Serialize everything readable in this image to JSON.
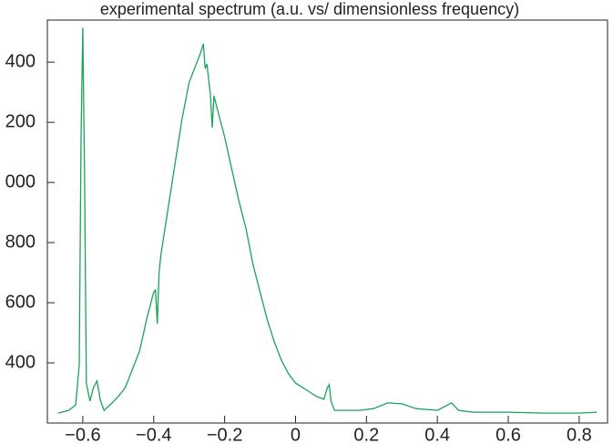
{
  "chart_data": {
    "type": "line",
    "title": "experimental spectrum (a.u. vs/ dimensionless frequency)",
    "x": [
      -0.67,
      -0.64,
      -0.62,
      -0.61,
      -0.605,
      -0.6,
      -0.595,
      -0.59,
      -0.58,
      -0.57,
      -0.56,
      -0.55,
      -0.54,
      -0.52,
      -0.5,
      -0.48,
      -0.46,
      -0.44,
      -0.42,
      -0.4,
      -0.395,
      -0.39,
      -0.385,
      -0.38,
      -0.36,
      -0.34,
      -0.32,
      -0.3,
      -0.28,
      -0.27,
      -0.26,
      -0.255,
      -0.25,
      -0.24,
      -0.235,
      -0.23,
      -0.22,
      -0.2,
      -0.18,
      -0.16,
      -0.14,
      -0.12,
      -0.1,
      -0.08,
      -0.06,
      -0.04,
      -0.02,
      0,
      0.02,
      0.04,
      0.06,
      0.08,
      0.09,
      0.095,
      0.1,
      0.11,
      0.14,
      0.18,
      0.22,
      0.26,
      0.3,
      0.34,
      0.4,
      0.44,
      0.46,
      0.5,
      0.6,
      0.7,
      0.8,
      0.85
    ],
    "series": [
      {
        "color": "#1aa35a",
        "values": [
          233,
          242,
          260,
          394,
          1151,
          1515,
          1000,
          333,
          273,
          318,
          340,
          273,
          242,
          264,
          288,
          318,
          379,
          439,
          545,
          636,
          642,
          530,
          697,
          758,
          909,
          1061,
          1212,
          1333,
          1394,
          1424,
          1461,
          1379,
          1394,
          1288,
          1182,
          1288,
          1242,
          1152,
          1045,
          939,
          848,
          727,
          636,
          545,
          470,
          409,
          364,
          333,
          318,
          303,
          288,
          279,
          318,
          327,
          273,
          242,
          242,
          242,
          248,
          267,
          264,
          248,
          242,
          267,
          242,
          236,
          236,
          233,
          233,
          236
        ]
      }
    ],
    "xlim": [
      -0.7,
      0.88
    ],
    "ylim": [
      200,
      1540
    ],
    "xticks": [
      {
        "value": -0.6,
        "label": "−0.6"
      },
      {
        "value": -0.4,
        "label": "−0.4"
      },
      {
        "value": -0.2,
        "label": "−0.2"
      },
      0,
      0.2,
      0.4,
      0.6,
      0.8
    ],
    "yticks": [
      400,
      600,
      800,
      {
        "value": 1000,
        "label": "000"
      },
      {
        "value": 1200,
        "label": "200"
      },
      {
        "value": 1400,
        "label": "400"
      }
    ]
  }
}
